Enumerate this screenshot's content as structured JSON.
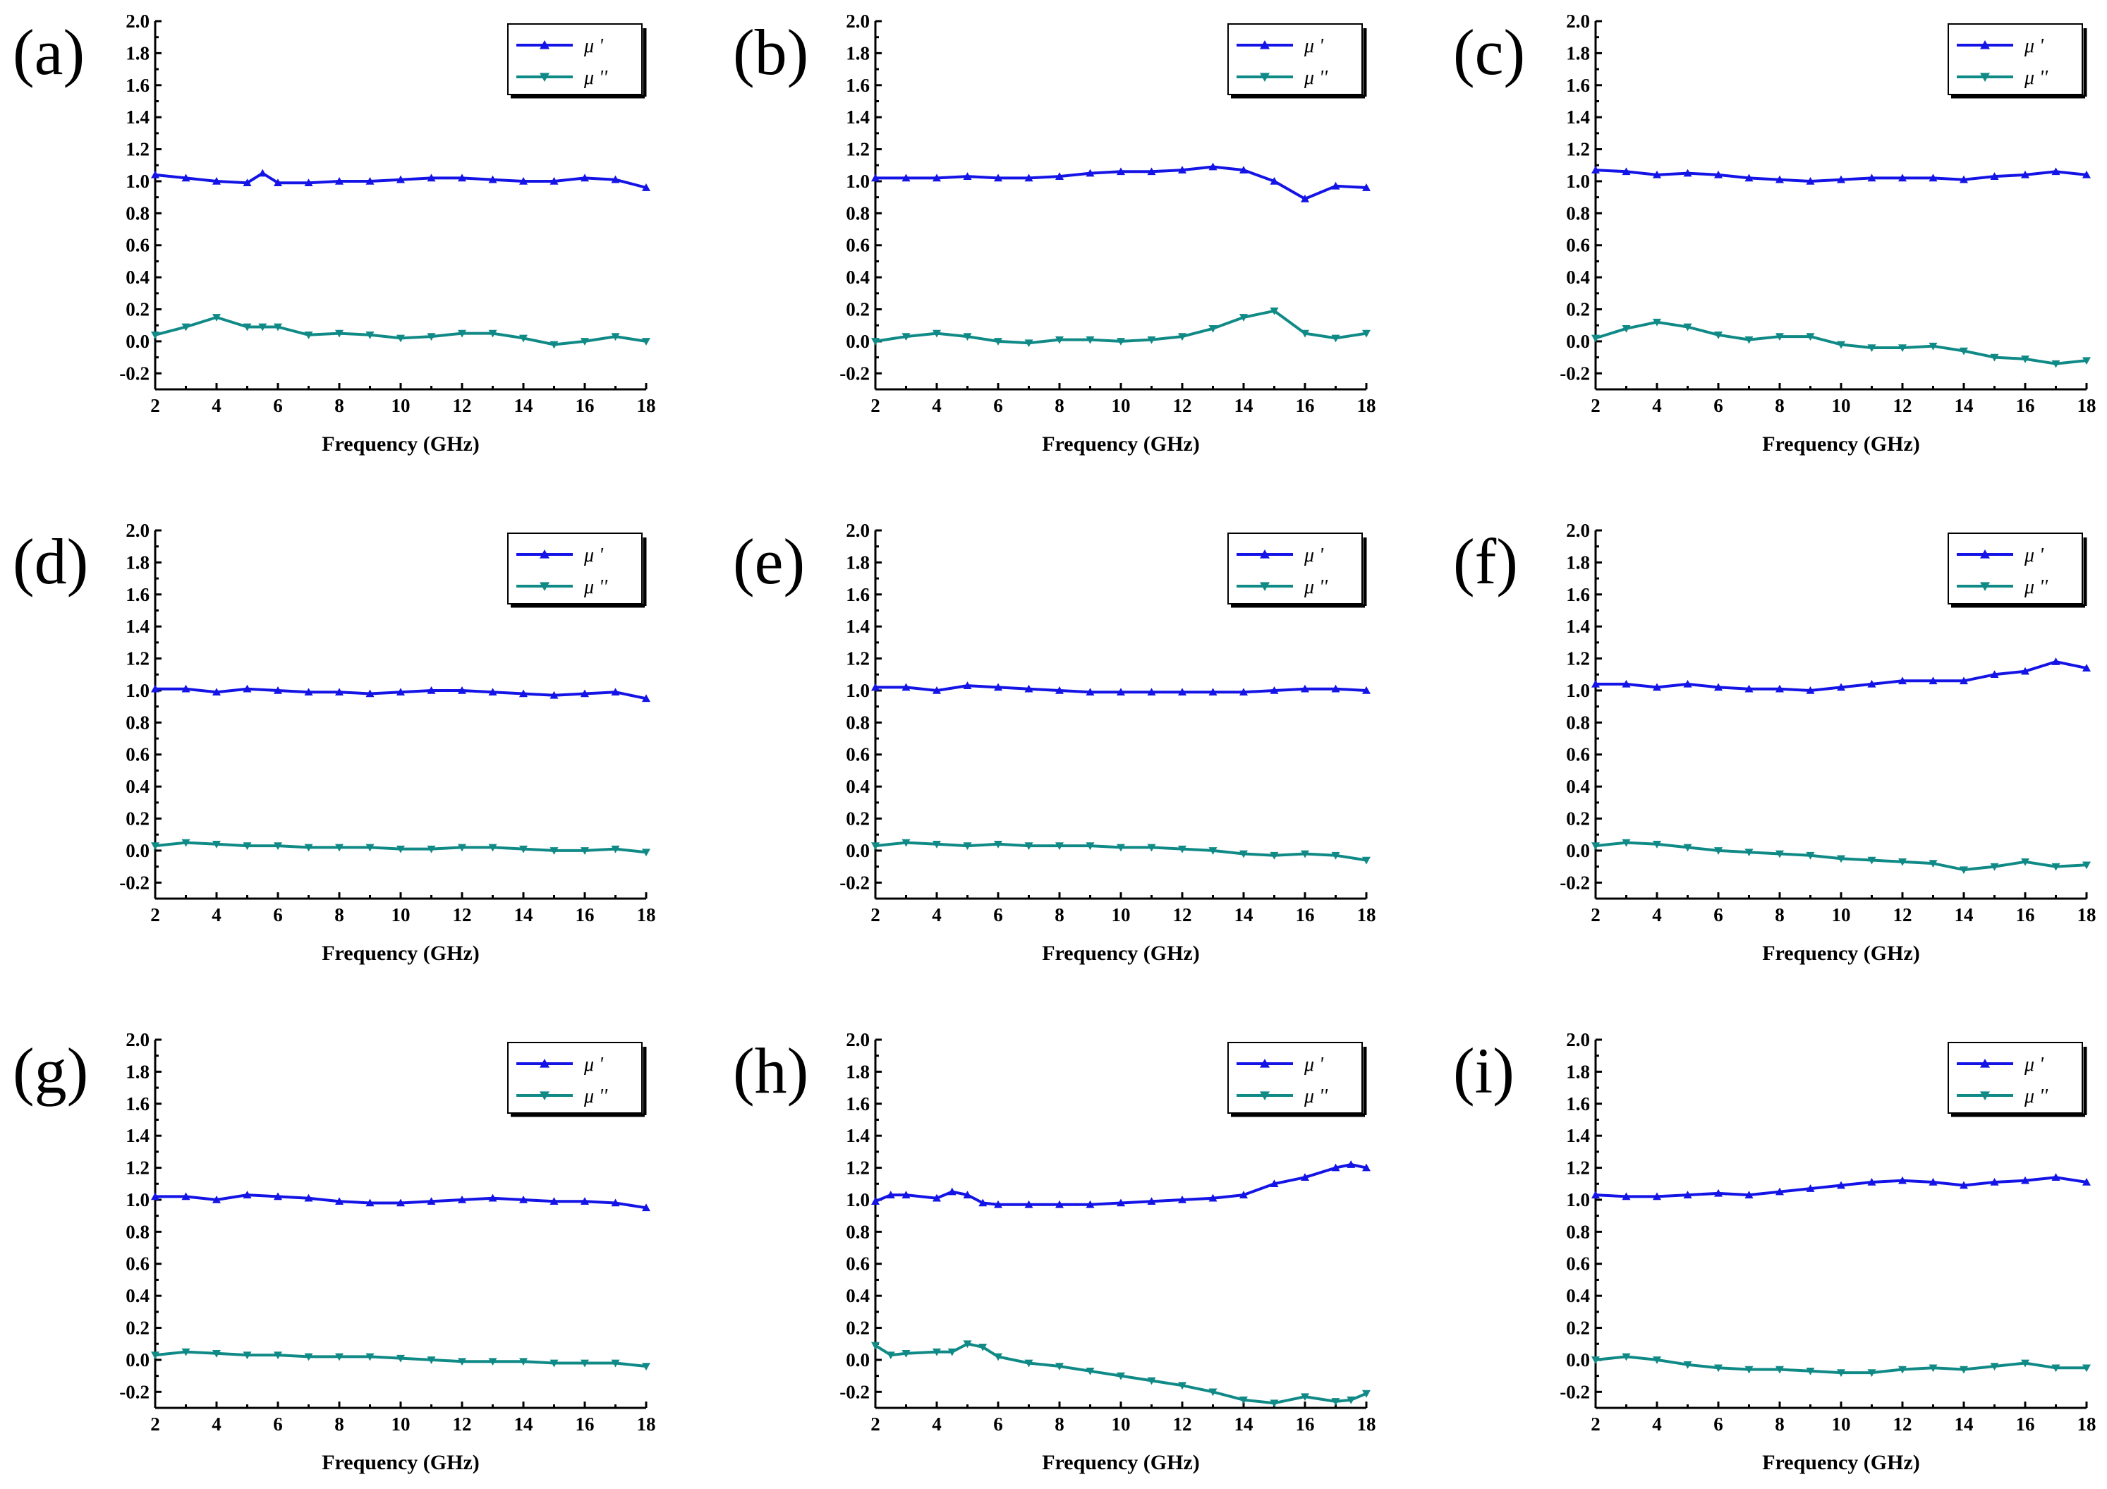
{
  "colors": {
    "mu_prime": "#1414e6",
    "mu_dprime": "#108a86",
    "axis": "#000000"
  },
  "chart_data": [
    {
      "type": "line",
      "label": "(a)",
      "xlabel": "Frequency (GHz)",
      "ylabel": "",
      "xlim": [
        2,
        18
      ],
      "ylim": [
        -0.3,
        2.0
      ],
      "xticks": [
        "2",
        "4",
        "6",
        "8",
        "10",
        "12",
        "14",
        "16",
        "18"
      ],
      "yticks": [
        "-0.2",
        "0.0",
        "0.2",
        "0.4",
        "0.6",
        "0.8",
        "1.0",
        "1.2",
        "1.4",
        "1.6",
        "1.8",
        "2.0"
      ],
      "legend": [
        "μ '",
        "μ ''"
      ],
      "x": [
        2,
        3,
        4,
        5,
        5.5,
        6,
        7,
        8,
        9,
        10,
        11,
        12,
        13,
        14,
        15,
        16,
        17,
        18
      ],
      "series": [
        {
          "name": "μ '",
          "values": [
            1.04,
            1.02,
            1.0,
            0.99,
            1.05,
            0.99,
            0.99,
            1.0,
            1.0,
            1.01,
            1.02,
            1.02,
            1.01,
            1.0,
            1.0,
            1.02,
            1.01,
            0.96
          ]
        },
        {
          "name": "μ ''",
          "values": [
            0.04,
            0.09,
            0.15,
            0.09,
            0.09,
            0.09,
            0.04,
            0.05,
            0.04,
            0.02,
            0.03,
            0.05,
            0.05,
            0.02,
            -0.02,
            0.0,
            0.03,
            0.0
          ]
        }
      ]
    },
    {
      "type": "line",
      "label": "(b)",
      "xlabel": "Frequency (GHz)",
      "ylabel": "",
      "xlim": [
        2,
        18
      ],
      "ylim": [
        -0.3,
        2.0
      ],
      "xticks": [
        "2",
        "4",
        "6",
        "8",
        "10",
        "12",
        "14",
        "16",
        "18"
      ],
      "yticks": [
        "-0.2",
        "0.0",
        "0.2",
        "0.4",
        "0.6",
        "0.8",
        "1.0",
        "1.2",
        "1.4",
        "1.6",
        "1.8",
        "2.0"
      ],
      "legend": [
        "μ '",
        "μ ''"
      ],
      "x": [
        2,
        3,
        4,
        5,
        6,
        7,
        8,
        9,
        10,
        11,
        12,
        13,
        14,
        15,
        16,
        17,
        18
      ],
      "series": [
        {
          "name": "μ '",
          "values": [
            1.02,
            1.02,
            1.02,
            1.03,
            1.02,
            1.02,
            1.03,
            1.05,
            1.06,
            1.06,
            1.07,
            1.09,
            1.07,
            1.0,
            0.89,
            0.97,
            0.96
          ]
        },
        {
          "name": "μ ''",
          "values": [
            0.0,
            0.03,
            0.05,
            0.03,
            0.0,
            -0.01,
            0.01,
            0.01,
            0.0,
            0.01,
            0.03,
            0.08,
            0.15,
            0.19,
            0.05,
            0.02,
            0.05
          ]
        }
      ]
    },
    {
      "type": "line",
      "label": "(c)",
      "xlabel": "Frequency (GHz)",
      "ylabel": "",
      "xlim": [
        2,
        18
      ],
      "ylim": [
        -0.3,
        2.0
      ],
      "xticks": [
        "2",
        "4",
        "6",
        "8",
        "10",
        "12",
        "14",
        "16",
        "18"
      ],
      "yticks": [
        "-0.2",
        "0.0",
        "0.2",
        "0.4",
        "0.6",
        "0.8",
        "1.0",
        "1.2",
        "1.4",
        "1.6",
        "1.8",
        "2.0"
      ],
      "legend": [
        "μ '",
        "μ ''"
      ],
      "x": [
        2,
        3,
        4,
        5,
        6,
        7,
        8,
        9,
        10,
        11,
        12,
        13,
        14,
        15,
        16,
        17,
        18
      ],
      "series": [
        {
          "name": "μ '",
          "values": [
            1.07,
            1.06,
            1.04,
            1.05,
            1.04,
            1.02,
            1.01,
            1.0,
            1.01,
            1.02,
            1.02,
            1.02,
            1.01,
            1.03,
            1.04,
            1.06,
            1.04
          ]
        },
        {
          "name": "μ ''",
          "values": [
            0.02,
            0.08,
            0.12,
            0.09,
            0.04,
            0.01,
            0.03,
            0.03,
            -0.02,
            -0.04,
            -0.04,
            -0.03,
            -0.06,
            -0.1,
            -0.11,
            -0.14,
            -0.12
          ]
        }
      ]
    },
    {
      "type": "line",
      "label": "(d)",
      "xlabel": "Frequency (GHz)",
      "ylabel": "",
      "xlim": [
        2,
        18
      ],
      "ylim": [
        -0.3,
        2.0
      ],
      "xticks": [
        "2",
        "4",
        "6",
        "8",
        "10",
        "12",
        "14",
        "16",
        "18"
      ],
      "yticks": [
        "-0.2",
        "0.0",
        "0.2",
        "0.4",
        "0.6",
        "0.8",
        "1.0",
        "1.2",
        "1.4",
        "1.6",
        "1.8",
        "2.0"
      ],
      "legend": [
        "μ '",
        "μ ''"
      ],
      "x": [
        2,
        3,
        4,
        5,
        6,
        7,
        8,
        9,
        10,
        11,
        12,
        13,
        14,
        15,
        16,
        17,
        18
      ],
      "series": [
        {
          "name": "μ '",
          "values": [
            1.01,
            1.01,
            0.99,
            1.01,
            1.0,
            0.99,
            0.99,
            0.98,
            0.99,
            1.0,
            1.0,
            0.99,
            0.98,
            0.97,
            0.98,
            0.99,
            0.95
          ]
        },
        {
          "name": "μ ''",
          "values": [
            0.03,
            0.05,
            0.04,
            0.03,
            0.03,
            0.02,
            0.02,
            0.02,
            0.01,
            0.01,
            0.02,
            0.02,
            0.01,
            0.0,
            0.0,
            0.01,
            -0.01
          ]
        }
      ]
    },
    {
      "type": "line",
      "label": "(e)",
      "xlabel": "Frequency (GHz)",
      "ylabel": "",
      "xlim": [
        2,
        18
      ],
      "ylim": [
        -0.3,
        2.0
      ],
      "xticks": [
        "2",
        "4",
        "6",
        "8",
        "10",
        "12",
        "14",
        "16",
        "18"
      ],
      "yticks": [
        "-0.2",
        "0.0",
        "0.2",
        "0.4",
        "0.6",
        "0.8",
        "1.0",
        "1.2",
        "1.4",
        "1.6",
        "1.8",
        "2.0"
      ],
      "legend": [
        "μ '",
        "μ ''"
      ],
      "x": [
        2,
        3,
        4,
        5,
        6,
        7,
        8,
        9,
        10,
        11,
        12,
        13,
        14,
        15,
        16,
        17,
        18
      ],
      "series": [
        {
          "name": "μ '",
          "values": [
            1.02,
            1.02,
            1.0,
            1.03,
            1.02,
            1.01,
            1.0,
            0.99,
            0.99,
            0.99,
            0.99,
            0.99,
            0.99,
            1.0,
            1.01,
            1.01,
            1.0
          ]
        },
        {
          "name": "μ ''",
          "values": [
            0.03,
            0.05,
            0.04,
            0.03,
            0.04,
            0.03,
            0.03,
            0.03,
            0.02,
            0.02,
            0.01,
            0.0,
            -0.02,
            -0.03,
            -0.02,
            -0.03,
            -0.06
          ]
        }
      ]
    },
    {
      "type": "line",
      "label": "(f)",
      "xlabel": "Frequency (GHz)",
      "ylabel": "",
      "xlim": [
        2,
        18
      ],
      "ylim": [
        -0.3,
        2.0
      ],
      "xticks": [
        "2",
        "4",
        "6",
        "8",
        "10",
        "12",
        "14",
        "16",
        "18"
      ],
      "yticks": [
        "-0.2",
        "0.0",
        "0.2",
        "0.4",
        "0.6",
        "0.8",
        "1.0",
        "1.2",
        "1.4",
        "1.6",
        "1.8",
        "2.0"
      ],
      "legend": [
        "μ '",
        "μ ''"
      ],
      "x": [
        2,
        3,
        4,
        5,
        6,
        7,
        8,
        9,
        10,
        11,
        12,
        13,
        14,
        15,
        16,
        17,
        18
      ],
      "series": [
        {
          "name": "μ '",
          "values": [
            1.04,
            1.04,
            1.02,
            1.04,
            1.02,
            1.01,
            1.01,
            1.0,
            1.02,
            1.04,
            1.06,
            1.06,
            1.06,
            1.1,
            1.12,
            1.18,
            1.14
          ]
        },
        {
          "name": "μ ''",
          "values": [
            0.03,
            0.05,
            0.04,
            0.02,
            0.0,
            -0.01,
            -0.02,
            -0.03,
            -0.05,
            -0.06,
            -0.07,
            -0.08,
            -0.12,
            -0.1,
            -0.07,
            -0.1,
            -0.09
          ]
        }
      ]
    },
    {
      "type": "line",
      "label": "(g)",
      "xlabel": "Frequency (GHz)",
      "ylabel": "",
      "xlim": [
        2,
        18
      ],
      "ylim": [
        -0.3,
        2.0
      ],
      "xticks": [
        "2",
        "4",
        "6",
        "8",
        "10",
        "12",
        "14",
        "16",
        "18"
      ],
      "yticks": [
        "-0.2",
        "0.0",
        "0.2",
        "0.4",
        "0.6",
        "0.8",
        "1.0",
        "1.2",
        "1.4",
        "1.6",
        "1.8",
        "2.0"
      ],
      "legend": [
        "μ '",
        "μ ''"
      ],
      "x": [
        2,
        3,
        4,
        5,
        6,
        7,
        8,
        9,
        10,
        11,
        12,
        13,
        14,
        15,
        16,
        17,
        18
      ],
      "series": [
        {
          "name": "μ '",
          "values": [
            1.02,
            1.02,
            1.0,
            1.03,
            1.02,
            1.01,
            0.99,
            0.98,
            0.98,
            0.99,
            1.0,
            1.01,
            1.0,
            0.99,
            0.99,
            0.98,
            0.95
          ]
        },
        {
          "name": "μ ''",
          "values": [
            0.03,
            0.05,
            0.04,
            0.03,
            0.03,
            0.02,
            0.02,
            0.02,
            0.01,
            0.0,
            -0.01,
            -0.01,
            -0.01,
            -0.02,
            -0.02,
            -0.02,
            -0.04
          ]
        }
      ]
    },
    {
      "type": "line",
      "label": "(h)",
      "xlabel": "Frequency (GHz)",
      "ylabel": "",
      "xlim": [
        2,
        18
      ],
      "ylim": [
        -0.3,
        2.0
      ],
      "xticks": [
        "2",
        "4",
        "6",
        "8",
        "10",
        "12",
        "14",
        "16",
        "18"
      ],
      "yticks": [
        "-0.2",
        "0.0",
        "0.2",
        "0.4",
        "0.6",
        "0.8",
        "1.0",
        "1.2",
        "1.4",
        "1.6",
        "1.8",
        "2.0"
      ],
      "legend": [
        "μ '",
        "μ ''"
      ],
      "x": [
        2,
        2.5,
        3,
        4,
        4.5,
        5,
        5.5,
        6,
        7,
        8,
        9,
        10,
        11,
        12,
        13,
        14,
        15,
        16,
        17,
        17.5,
        18
      ],
      "series": [
        {
          "name": "μ '",
          "values": [
            0.99,
            1.03,
            1.03,
            1.01,
            1.05,
            1.03,
            0.98,
            0.97,
            0.97,
            0.97,
            0.97,
            0.98,
            0.99,
            1.0,
            1.01,
            1.03,
            1.1,
            1.14,
            1.2,
            1.22,
            1.2
          ]
        },
        {
          "name": "μ ''",
          "values": [
            0.09,
            0.03,
            0.04,
            0.05,
            0.05,
            0.1,
            0.08,
            0.02,
            -0.02,
            -0.04,
            -0.07,
            -0.1,
            -0.13,
            -0.16,
            -0.2,
            -0.25,
            -0.27,
            -0.23,
            -0.26,
            -0.25,
            -0.21
          ]
        }
      ]
    },
    {
      "type": "line",
      "label": "(i)",
      "xlabel": "Frequency (GHz)",
      "ylabel": "",
      "xlim": [
        2,
        18
      ],
      "ylim": [
        -0.3,
        2.0
      ],
      "xticks": [
        "2",
        "4",
        "6",
        "8",
        "10",
        "12",
        "14",
        "16",
        "18"
      ],
      "yticks": [
        "-0.2",
        "0.0",
        "0.2",
        "0.4",
        "0.6",
        "0.8",
        "1.0",
        "1.2",
        "1.4",
        "1.6",
        "1.8",
        "2.0"
      ],
      "legend": [
        "μ '",
        "μ ''"
      ],
      "x": [
        2,
        3,
        4,
        5,
        6,
        7,
        8,
        9,
        10,
        11,
        12,
        13,
        14,
        15,
        16,
        17,
        18
      ],
      "series": [
        {
          "name": "μ '",
          "values": [
            1.03,
            1.02,
            1.02,
            1.03,
            1.04,
            1.03,
            1.05,
            1.07,
            1.09,
            1.11,
            1.12,
            1.11,
            1.09,
            1.11,
            1.12,
            1.14,
            1.11
          ]
        },
        {
          "name": "μ ''",
          "values": [
            0.0,
            0.02,
            0.0,
            -0.03,
            -0.05,
            -0.06,
            -0.06,
            -0.07,
            -0.08,
            -0.08,
            -0.06,
            -0.05,
            -0.06,
            -0.04,
            -0.02,
            -0.05,
            -0.05
          ]
        }
      ]
    }
  ]
}
